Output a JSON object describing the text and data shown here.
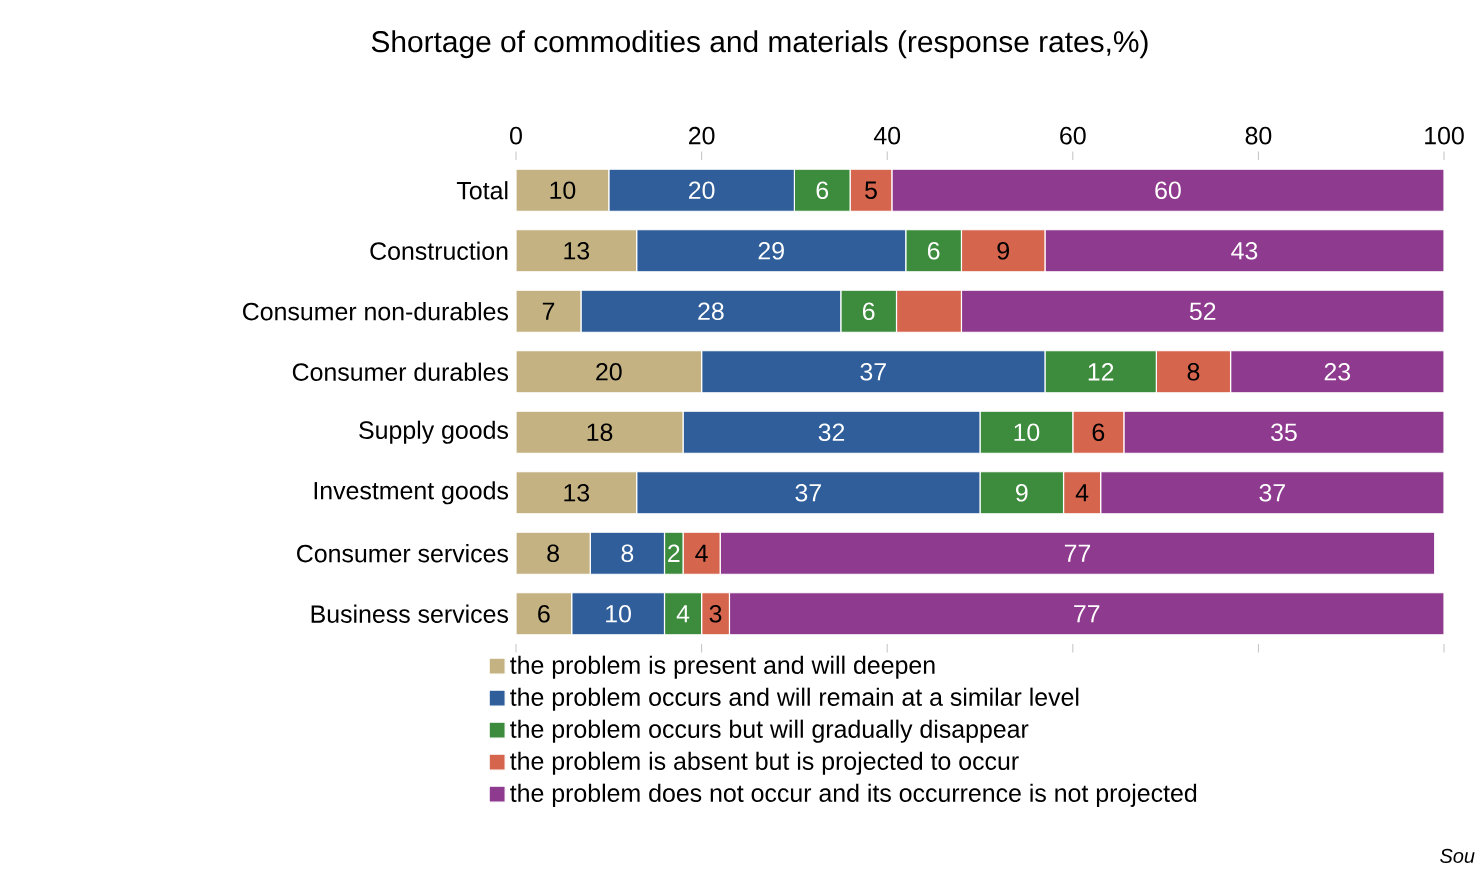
{
  "chart_data": {
    "type": "bar",
    "orientation": "horizontal",
    "stacked": true,
    "title": "Shortage of commodities and materials (response rates,%)",
    "categories": [
      "Total",
      "Construction",
      "Consumer non-durables",
      "Consumer durables",
      "Supply goods",
      "Investment goods",
      "Consumer services",
      "Business services"
    ],
    "series": [
      {
        "name": "the problem is present and will deepen",
        "color": "#c4b283",
        "values": [
          10,
          13,
          7,
          20,
          18,
          13,
          8,
          6
        ],
        "value_labels": [
          "10",
          "13",
          "7",
          "20",
          "18",
          "13",
          "8",
          "6"
        ]
      },
      {
        "name": "the problem occurs and will remain at a similar level",
        "color": "#2f5e9a",
        "values": [
          20,
          29,
          28,
          37,
          32,
          37,
          8,
          10
        ],
        "value_labels": [
          "20",
          "29",
          "28",
          "37",
          "32",
          "37",
          "8",
          "10"
        ]
      },
      {
        "name": "the problem occurs but will gradually disappear",
        "color": "#3d8b3d",
        "values": [
          6,
          6,
          6,
          12,
          10,
          9,
          2,
          4
        ],
        "value_labels": [
          "6",
          "6",
          "6",
          "12",
          "10",
          "9",
          "2",
          "4"
        ]
      },
      {
        "name": "the problem is absent but is projected to occur",
        "color": "#d6654e",
        "values": [
          4.5,
          9,
          7,
          8,
          5.5,
          4,
          4,
          3
        ],
        "value_labels": [
          "5",
          "9",
          null,
          "8",
          "6",
          "4",
          "4",
          "3"
        ]
      },
      {
        "name": "the problem does not occur and its occurrence is not projected",
        "color": "#8e3a8e",
        "values": [
          59.5,
          43,
          52,
          23,
          34.5,
          37,
          77,
          77
        ],
        "value_labels": [
          "60",
          "43",
          "52",
          "23",
          "35",
          "37",
          "77",
          "77"
        ]
      }
    ],
    "xlim": [
      0,
      100
    ],
    "xticks": [
      0,
      20,
      40,
      60,
      80,
      100
    ],
    "legend": "bottom",
    "annotations": [
      "Sou"
    ]
  }
}
